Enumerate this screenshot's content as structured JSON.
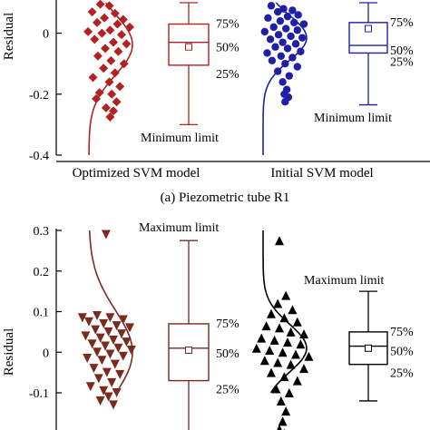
{
  "chart_data": [
    {
      "type": "scatter",
      "caption": "(a) Piezometric tube R1",
      "ylabel": "Residual",
      "ylim": [
        -0.4,
        0.1
      ],
      "yticks": [
        0,
        -0.2,
        -0.4
      ],
      "ytick_labels": [
        "0",
        "-0.2",
        "-0.4"
      ],
      "groups": [
        {
          "name": "Optimized SVM model",
          "color": "#b22222",
          "marker": "diamond",
          "points": [
            [
              0.34,
              0.095
            ],
            [
              0.45,
              0.09
            ],
            [
              0.24,
              0.07
            ],
            [
              0.52,
              0.065
            ],
            [
              0.39,
              0.05
            ],
            [
              0.62,
              0.045
            ],
            [
              0.3,
              0.035
            ],
            [
              0.55,
              0.03
            ],
            [
              0.7,
              0.02
            ],
            [
              0.46,
              0.01
            ],
            [
              0.19,
              0.005
            ],
            [
              0.36,
              0.0
            ],
            [
              0.6,
              -0.005
            ],
            [
              0.27,
              -0.02
            ],
            [
              0.5,
              -0.03
            ],
            [
              0.66,
              -0.035
            ],
            [
              0.4,
              -0.05
            ],
            [
              0.56,
              -0.06
            ],
            [
              0.31,
              -0.075
            ],
            [
              0.47,
              -0.09
            ],
            [
              0.63,
              -0.1
            ],
            [
              0.38,
              -0.115
            ],
            [
              0.52,
              -0.13
            ],
            [
              0.25,
              -0.145
            ],
            [
              0.45,
              -0.16
            ],
            [
              0.58,
              -0.175
            ],
            [
              0.33,
              -0.195
            ],
            [
              0.48,
              -0.2
            ],
            [
              0.29,
              -0.215
            ],
            [
              0.54,
              -0.225
            ],
            [
              0.41,
              -0.245
            ],
            [
              0.5,
              -0.255
            ],
            [
              0.46,
              -0.275
            ]
          ],
          "box": {
            "p25": -0.105,
            "median": -0.03,
            "p75": 0.03,
            "mean": -0.045,
            "min": -0.3,
            "max": 0.1
          },
          "labels": {
            "p75": "75%",
            "median": "50%",
            "p25": "25%",
            "limit": "Minimum limit"
          }
        },
        {
          "name": "Initial SVM model",
          "color": "#1f1fa8",
          "marker": "circle",
          "points": [
            [
              0.3,
              0.09
            ],
            [
              0.45,
              0.08
            ],
            [
              0.56,
              0.075
            ],
            [
              0.38,
              0.07
            ],
            [
              0.63,
              0.06
            ],
            [
              0.5,
              0.055
            ],
            [
              0.26,
              0.05
            ],
            [
              0.41,
              0.04
            ],
            [
              0.58,
              0.035
            ],
            [
              0.7,
              0.03
            ],
            [
              0.33,
              0.02
            ],
            [
              0.48,
              0.015
            ],
            [
              0.62,
              0.01
            ],
            [
              0.22,
              0.005
            ],
            [
              0.39,
              -0.005
            ],
            [
              0.54,
              -0.01
            ],
            [
              0.68,
              -0.015
            ],
            [
              0.29,
              -0.02
            ],
            [
              0.44,
              -0.03
            ],
            [
              0.6,
              -0.035
            ],
            [
              0.35,
              -0.045
            ],
            [
              0.5,
              -0.05
            ],
            [
              0.66,
              -0.06
            ],
            [
              0.25,
              -0.065
            ],
            [
              0.42,
              -0.075
            ],
            [
              0.56,
              -0.08
            ],
            [
              0.31,
              -0.09
            ],
            [
              0.47,
              -0.1
            ],
            [
              0.62,
              -0.11
            ],
            [
              0.38,
              -0.125
            ],
            [
              0.52,
              -0.14
            ],
            [
              0.44,
              -0.16
            ],
            [
              0.49,
              -0.185
            ],
            [
              0.46,
              -0.2
            ],
            [
              0.51,
              -0.21
            ],
            [
              0.47,
              -0.225
            ]
          ],
          "box": {
            "p25": -0.065,
            "median": -0.04,
            "p75": 0.035,
            "mean": 0.015,
            "min": -0.235,
            "max": 0.1
          },
          "labels": {
            "p75": "75%",
            "median": "50%",
            "p25": "25%",
            "limit": "Minimum limit"
          }
        }
      ]
    },
    {
      "type": "scatter",
      "ylabel": "Residual",
      "ylim": [
        -0.2,
        0.3
      ],
      "yticks": [
        0.3,
        0.2,
        0.1,
        0,
        -0.1
      ],
      "ytick_labels": [
        "0.3",
        "0.2",
        "0.1",
        "0",
        "-0.1"
      ],
      "groups": [
        {
          "name": "",
          "color": "#7a2a1e",
          "marker": "triangle-down",
          "points": [
            [
              0.12,
              0.085
            ],
            [
              0.3,
              0.09
            ],
            [
              0.46,
              0.085
            ],
            [
              0.62,
              0.08
            ],
            [
              0.2,
              0.075
            ],
            [
              0.38,
              0.07
            ],
            [
              0.54,
              0.065
            ],
            [
              0.7,
              0.06
            ],
            [
              0.28,
              0.055
            ],
            [
              0.44,
              0.05
            ],
            [
              0.6,
              0.045
            ],
            [
              0.16,
              0.04
            ],
            [
              0.34,
              0.035
            ],
            [
              0.5,
              0.03
            ],
            [
              0.66,
              0.025
            ],
            [
              0.24,
              0.02
            ],
            [
              0.4,
              0.015
            ],
            [
              0.56,
              0.01
            ],
            [
              0.72,
              0.005
            ],
            [
              0.3,
              0.0
            ],
            [
              0.46,
              -0.005
            ],
            [
              0.62,
              -0.01
            ],
            [
              0.18,
              -0.015
            ],
            [
              0.36,
              -0.02
            ],
            [
              0.52,
              -0.03
            ],
            [
              0.26,
              -0.04
            ],
            [
              0.42,
              -0.05
            ],
            [
              0.58,
              -0.055
            ],
            [
              0.32,
              -0.065
            ],
            [
              0.48,
              -0.075
            ],
            [
              0.22,
              -0.085
            ],
            [
              0.38,
              -0.095
            ],
            [
              0.54,
              -0.1
            ],
            [
              0.44,
              -0.11
            ],
            [
              0.34,
              -0.12
            ],
            [
              0.5,
              -0.13
            ],
            [
              0.41,
              0.29
            ]
          ],
          "box": {
            "p25": -0.07,
            "median": 0.01,
            "p75": 0.07,
            "mean": 0.005,
            "min": -0.2,
            "max": 0.275
          },
          "labels": {
            "p75": "75%",
            "median": "50%",
            "p25": "25%",
            "limit": "Maximum limit"
          }
        },
        {
          "name": "",
          "color": "#000000",
          "marker": "triangle-up",
          "points": [
            [
              0.4,
              0.275
            ],
            [
              0.48,
              0.14
            ],
            [
              0.38,
              0.12
            ],
            [
              0.56,
              0.105
            ],
            [
              0.3,
              0.095
            ],
            [
              0.46,
              0.085
            ],
            [
              0.62,
              0.075
            ],
            [
              0.24,
              0.065
            ],
            [
              0.4,
              0.06
            ],
            [
              0.54,
              0.05
            ],
            [
              0.7,
              0.045
            ],
            [
              0.18,
              0.035
            ],
            [
              0.34,
              0.03
            ],
            [
              0.5,
              0.025
            ],
            [
              0.66,
              0.02
            ],
            [
              0.12,
              0.01
            ],
            [
              0.28,
              0.005
            ],
            [
              0.44,
              0.0
            ],
            [
              0.6,
              -0.005
            ],
            [
              0.76,
              -0.01
            ],
            [
              0.22,
              -0.02
            ],
            [
              0.38,
              -0.025
            ],
            [
              0.54,
              -0.03
            ],
            [
              0.7,
              -0.04
            ],
            [
              0.3,
              -0.05
            ],
            [
              0.46,
              -0.06
            ],
            [
              0.62,
              -0.07
            ],
            [
              0.36,
              -0.09
            ],
            [
              0.52,
              -0.1
            ],
            [
              0.42,
              -0.12
            ],
            [
              0.48,
              -0.145
            ],
            [
              0.44,
              -0.17
            ],
            [
              0.4,
              -0.19
            ],
            [
              0.46,
              -0.2
            ]
          ],
          "box": {
            "p25": -0.03,
            "median": 0.015,
            "p75": 0.05,
            "mean": 0.01,
            "min": -0.12,
            "max": 0.15
          },
          "labels": {
            "p75": "75%",
            "median": "50%",
            "p25": "25%",
            "limit": "Maximum limit"
          }
        }
      ]
    }
  ]
}
